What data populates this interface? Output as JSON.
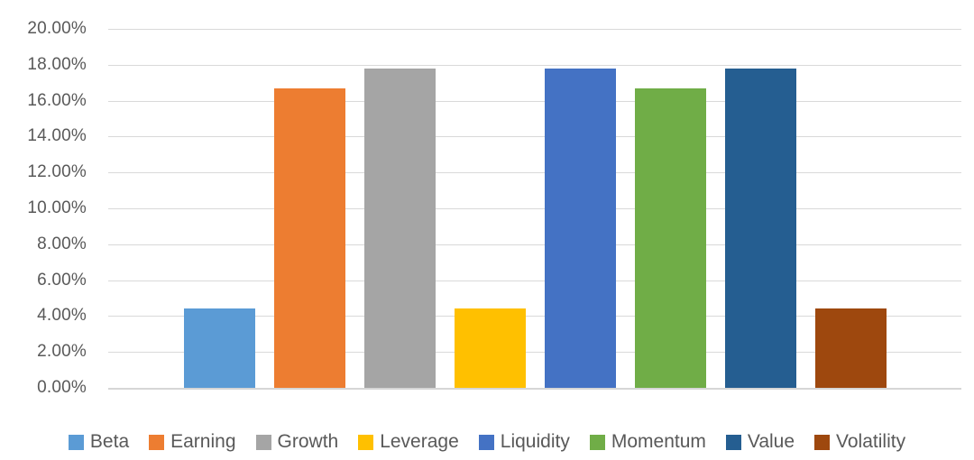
{
  "chart_data": {
    "type": "bar",
    "title": "",
    "xlabel": "",
    "ylabel": "",
    "categories": [
      "Beta",
      "Earning",
      "Growth",
      "Leverage",
      "Liquidity",
      "Momentum",
      "Value",
      "Volatility"
    ],
    "values": [
      4.44,
      16.67,
      17.78,
      4.44,
      17.78,
      16.67,
      17.78,
      4.44
    ],
    "value_unit": "%",
    "colors": [
      "#5B9BD5",
      "#ED7D31",
      "#A5A5A5",
      "#FFC000",
      "#4472C4",
      "#70AD47",
      "#255E91",
      "#9E480E"
    ],
    "ylim": [
      0,
      20
    ],
    "ytick_labels": [
      "20.00%",
      "18.00%",
      "16.00%",
      "14.00%",
      "12.00%",
      "10.00%",
      "8.00%",
      "6.00%",
      "4.00%",
      "2.00%",
      "0.00%"
    ],
    "grid": true,
    "legend_position": "bottom-center",
    "legend_entries": [
      "Beta",
      "Earning",
      "Growth",
      "Leverage",
      "Liquidity",
      "Momentum",
      "Value",
      "Volatility"
    ]
  },
  "style": {
    "gridline_color": "#D9D9D9",
    "axis_line_color": "#D6D6D6",
    "tick_label_color": "#595959",
    "legend_text_color": "#595959",
    "background_color": "#FFFFFF"
  }
}
